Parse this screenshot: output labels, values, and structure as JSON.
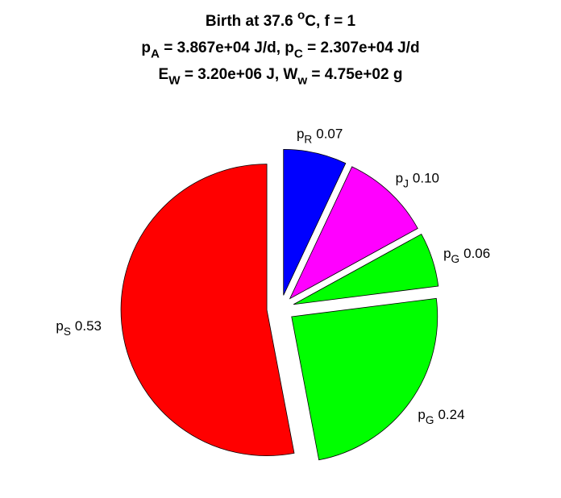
{
  "chart_data": {
    "type": "pie",
    "title": [
      [
        "Birth at 37.6 ",
        {
          "sup": "o"
        },
        "C, f = 1"
      ],
      [
        "p",
        {
          "sub": "A"
        },
        " = 3.867e+04 J/d, p",
        {
          "sub": "C"
        },
        " = 2.307e+04 J/d"
      ],
      [
        "E",
        {
          "sub": "W"
        },
        " = 3.20e+06 J, W",
        {
          "sub": "w"
        },
        " = 4.75e+02 g"
      ]
    ],
    "categories": [
      [
        "p",
        {
          "sub": "R"
        }
      ],
      [
        "p",
        {
          "sub": "J"
        }
      ],
      [
        "p",
        {
          "sub": "G"
        }
      ],
      [
        "p",
        {
          "sub": "G"
        }
      ],
      [
        "p",
        {
          "sub": "S"
        }
      ]
    ],
    "values": [
      0.07,
      0.1,
      0.06,
      0.24,
      0.53
    ],
    "value_labels": [
      "0.07",
      "0.10",
      "0.06",
      "0.24",
      "0.53"
    ],
    "colors": [
      "#0000ff",
      "#ff00ff",
      "#00ff00",
      "#00ff00",
      "#ff0000"
    ],
    "exploded": true
  }
}
